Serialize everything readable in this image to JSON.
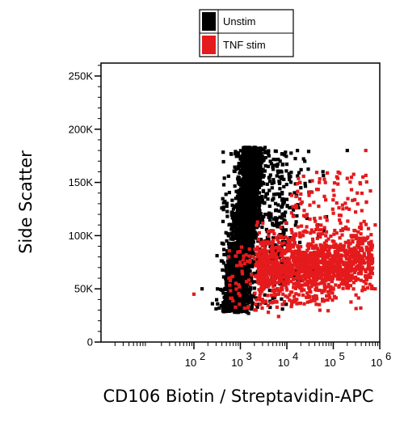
{
  "chart_data": {
    "type": "scatter",
    "title": "",
    "xlabel": "CD106 Biotin / Streptavidin-APC",
    "ylabel": "Side Scatter",
    "x_scale": "log",
    "xlim": [
      1,
      1000000
    ],
    "ylim": [
      0,
      262144
    ],
    "x_ticks": [
      {
        "value": 100,
        "exp": "2"
      },
      {
        "value": 1000,
        "exp": "3"
      },
      {
        "value": 10000,
        "exp": "4"
      },
      {
        "value": 100000,
        "exp": "5"
      },
      {
        "value": 1000000,
        "exp": "6"
      }
    ],
    "x_tick_base": "10",
    "y_ticks": [
      {
        "value": 0,
        "label": "0"
      },
      {
        "value": 50000,
        "label": "50K"
      },
      {
        "value": 100000,
        "label": "100K"
      },
      {
        "value": 150000,
        "label": "150K"
      },
      {
        "value": 200000,
        "label": "200K"
      },
      {
        "value": 250000,
        "label": "250K"
      }
    ],
    "grid": false,
    "legend_position": "top-right",
    "series": [
      {
        "name": "Unstim",
        "color": "#000000",
        "distribution": {
          "x_log_center": 3.45,
          "x_log_spread": 0.22,
          "y_center": 95000,
          "y_spread": 42000
        },
        "points": [
          {
            "x": 450,
            "y": 42000
          },
          {
            "x": 520,
            "y": 65000
          },
          {
            "x": 600,
            "y": 88000
          },
          {
            "x": 700,
            "y": 110000
          },
          {
            "x": 800,
            "y": 135000
          },
          {
            "x": 900,
            "y": 155000
          },
          {
            "x": 1000,
            "y": 172000
          },
          {
            "x": 1200,
            "y": 180000
          },
          {
            "x": 1500,
            "y": 183000
          },
          {
            "x": 2000,
            "y": 183000
          },
          {
            "x": 2500,
            "y": 182000
          },
          {
            "x": 3000,
            "y": 150000
          },
          {
            "x": 3500,
            "y": 120000
          },
          {
            "x": 4000,
            "y": 95000
          },
          {
            "x": 5000,
            "y": 110000
          },
          {
            "x": 8000,
            "y": 120000
          },
          {
            "x": 20000,
            "y": 145000
          },
          {
            "x": 60000,
            "y": 160000
          },
          {
            "x": 200000,
            "y": 180000
          },
          {
            "x": 150,
            "y": 50000
          },
          {
            "x": 250,
            "y": 36000
          },
          {
            "x": 350,
            "y": 32000
          },
          {
            "x": 900,
            "y": 28000
          },
          {
            "x": 1500,
            "y": 27000
          }
        ]
      },
      {
        "name": "TNF stim",
        "color": "#e41a1c",
        "distribution": {
          "x_log_center": 4.8,
          "x_log_spread": 0.55,
          "y_center": 72000,
          "y_spread": 18000
        },
        "points": [
          {
            "x": 5000,
            "y": 60000
          },
          {
            "x": 10000,
            "y": 70000
          },
          {
            "x": 30000,
            "y": 75000
          },
          {
            "x": 100000,
            "y": 80000
          },
          {
            "x": 300000,
            "y": 85000
          },
          {
            "x": 700000,
            "y": 75000
          },
          {
            "x": 800000,
            "y": 110000
          },
          {
            "x": 50000,
            "y": 150000
          },
          {
            "x": 20000,
            "y": 130000
          },
          {
            "x": 4000,
            "y": 28000
          },
          {
            "x": 3000,
            "y": 40000
          },
          {
            "x": 200000,
            "y": 55000
          },
          {
            "x": 500000,
            "y": 180000
          },
          {
            "x": 800000,
            "y": 50000
          },
          {
            "x": 100,
            "y": 45000
          }
        ]
      }
    ]
  }
}
